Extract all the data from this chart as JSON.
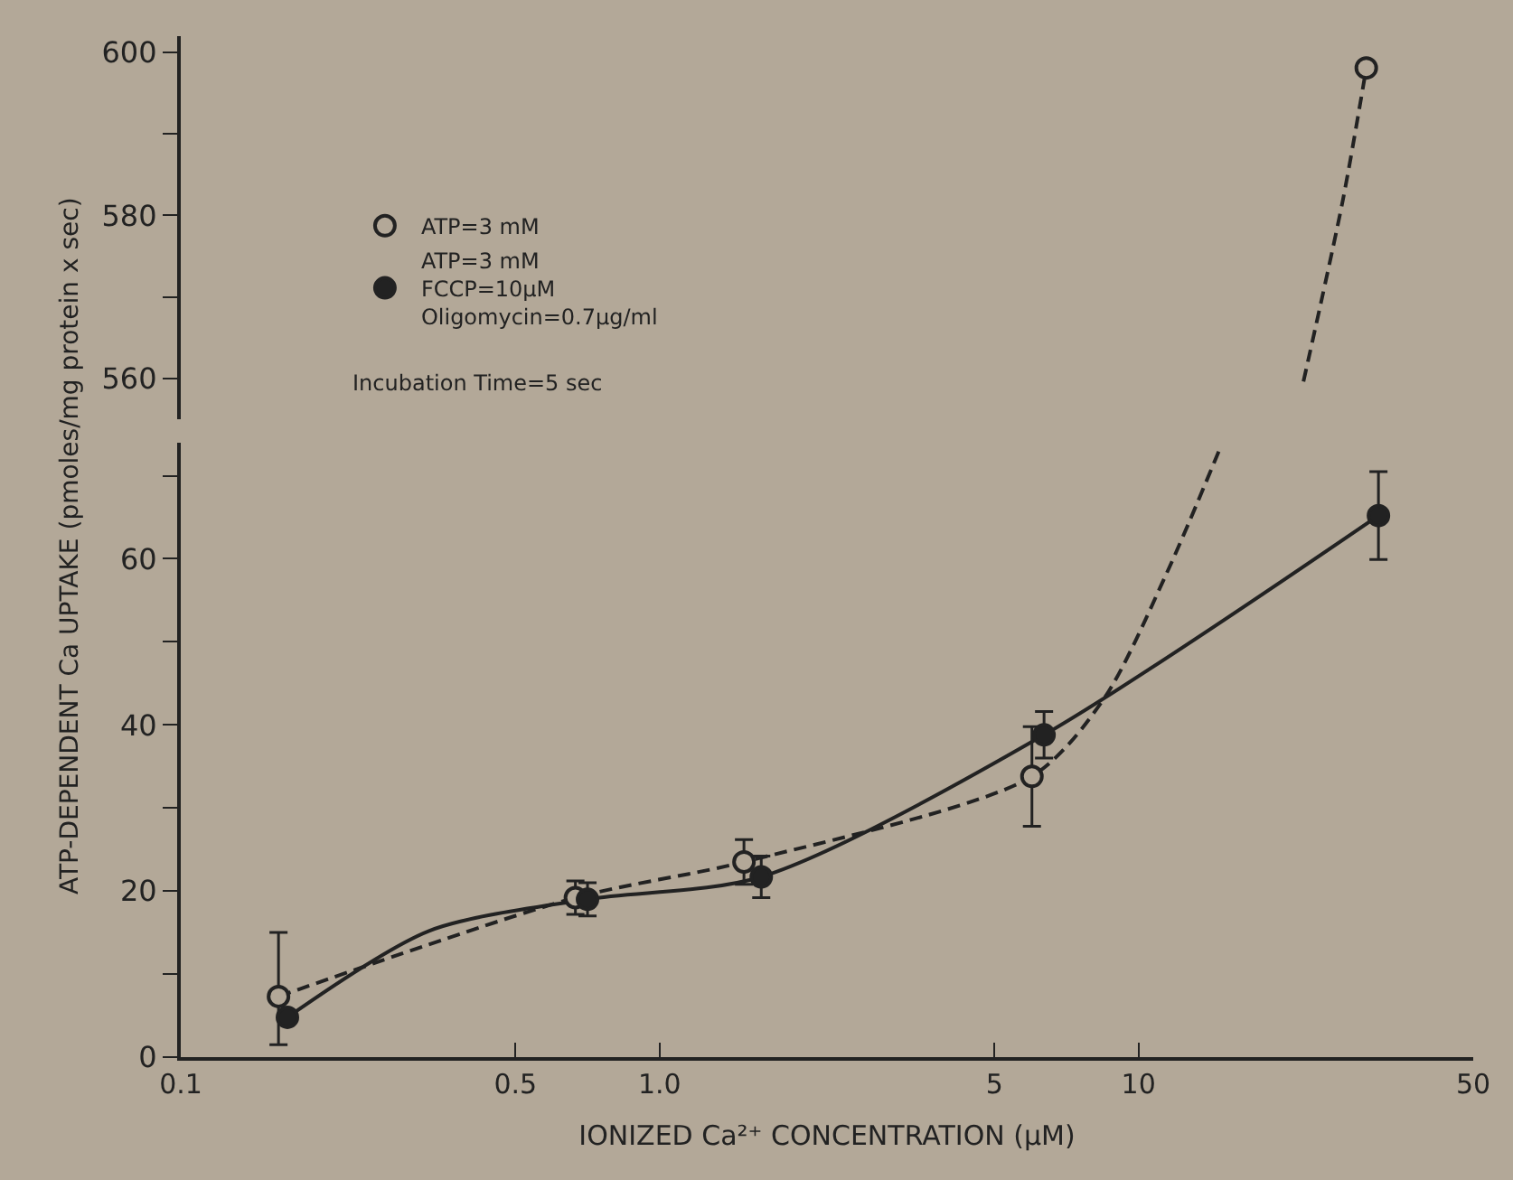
{
  "chart_data": [
    {
      "type": "line",
      "log": "x",
      "xlim": [
        0.1,
        50
      ],
      "ylim": [
        555,
        602
      ],
      "yticks": [
        560,
        {
          "value": 570,
          "label": null
        },
        580,
        {
          "value": 590,
          "label": null
        },
        600
      ],
      "tick_labels": "y",
      "grid": false,
      "annotations": [
        "Incubation Time=5 sec"
      ],
      "series": [
        {
          "color": "#222222",
          "line_style": "dashed",
          "marker": "none",
          "x": [
            22.1,
            26.7,
            29.9
          ],
          "values": [
            559.6,
            581.8,
            598.1
          ]
        },
        {
          "type": "scatter",
          "color": "#b3a898",
          "marker": "circle",
          "x": [
            29.9
          ],
          "values": [
            598.1
          ]
        }
      ]
    },
    {
      "type": "line",
      "log": "x",
      "xlim": [
        0.1,
        50
      ],
      "xticks": [
        0.1,
        0.5,
        {
          "value": 1,
          "label": "1.0"
        },
        5,
        10,
        50
      ],
      "ylim": [
        0,
        74
      ],
      "yticks": [
        0,
        {
          "value": 10,
          "label": null
        },
        20,
        {
          "value": 30,
          "label": null
        },
        40,
        {
          "value": 50,
          "label": null
        },
        60,
        {
          "value": 70,
          "label": null
        }
      ],
      "grid": false,
      "legend": "top left",
      "xlabel": "IONIZED Ca²⁺ CONCENTRATION (µM)",
      "ylabel": "ATP-DEPENDENT Ca UPTAKE (pmoles/mg protein x sec)",
      "series": [
        {
          "color": "#222222",
          "line_style": "dashed",
          "marker": "none",
          "x": [
            0.16,
            0.667,
            1.5,
            5.99,
            8.5,
            11.5,
            14.8
          ],
          "values": [
            7.3,
            19.2,
            23.5,
            33.8,
            43.3,
            58.5,
            73.3
          ]
        },
        {
          "color": "#222222",
          "line_style": "solid",
          "marker": "none",
          "x": [
            0.167,
            0.33,
            0.707,
            1.63,
            6.35,
            31.7
          ],
          "values": [
            4.8,
            15.2,
            19.0,
            21.7,
            38.8,
            65.2
          ]
        },
        {
          "type": "scatter",
          "name": "ATP=3 mM",
          "color": "#b3a898",
          "marker": "circle",
          "x": [
            0.16,
            0.667,
            1.5,
            5.99
          ],
          "values": [
            7.3,
            19.2,
            23.5,
            33.8
          ],
          "errors": [
            [
              1.5,
              15.0
            ],
            2.0,
            2.7,
            6.0
          ]
        },
        {
          "type": "scatter",
          "name": "ATP=3 mM\nFCCP=10µM\nOligomycin=0.7µg/ml",
          "color": "#222222",
          "marker": "circle",
          "x": [
            0.167,
            0.707,
            1.63,
            6.35,
            31.7
          ],
          "values": [
            4.8,
            19.0,
            21.7,
            38.8,
            65.2
          ],
          "errors": [
            null,
            2.0,
            2.5,
            2.8,
            5.3
          ]
        }
      ]
    }
  ]
}
